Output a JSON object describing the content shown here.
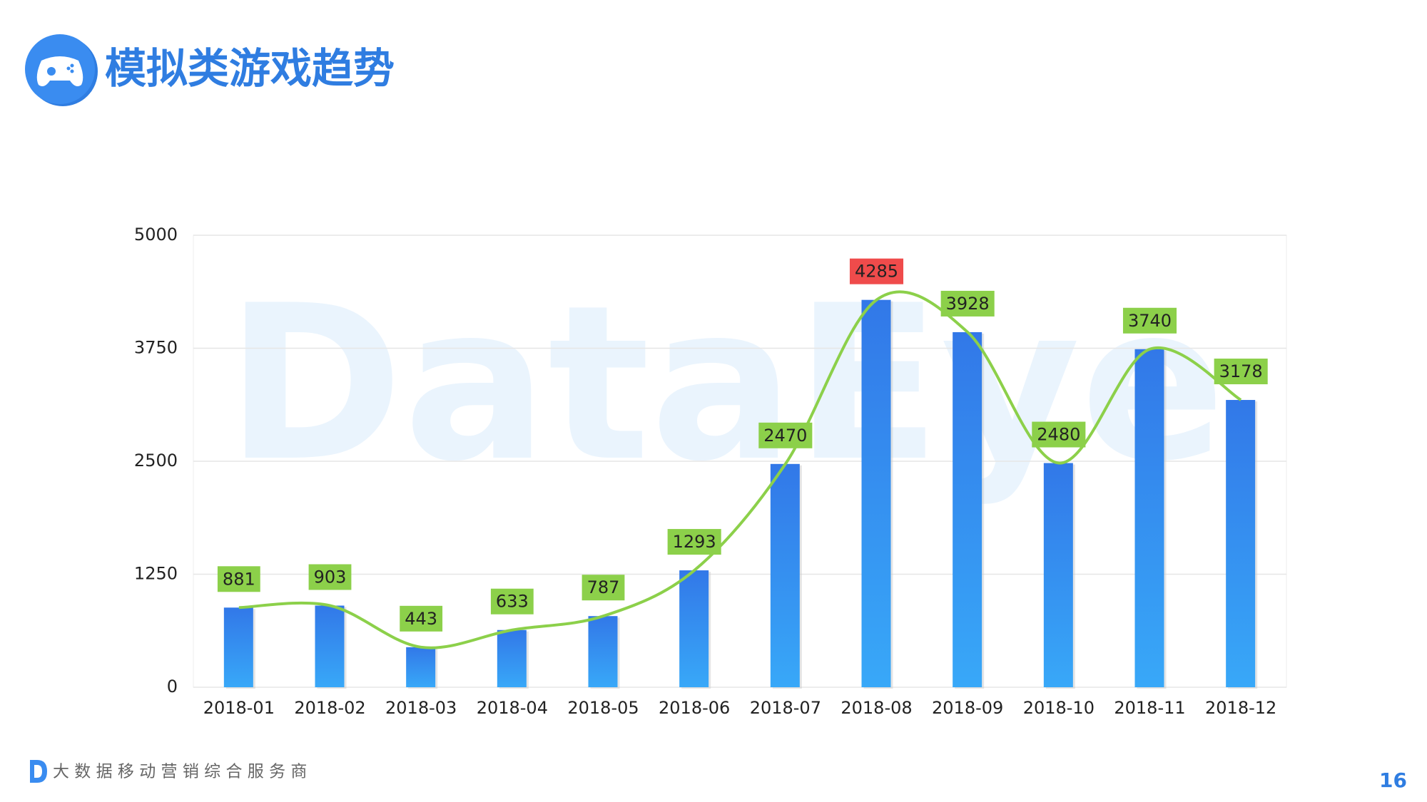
{
  "header": {
    "title": "模拟类游戏趋势"
  },
  "chart_data": {
    "type": "bar",
    "watermark": "DataEye",
    "categories": [
      "2018-01",
      "2018-02",
      "2018-03",
      "2018-04",
      "2018-05",
      "2018-06",
      "2018-07",
      "2018-08",
      "2018-09",
      "2018-10",
      "2018-11",
      "2018-12"
    ],
    "values": [
      881,
      903,
      443,
      633,
      787,
      1293,
      2470,
      4285,
      3928,
      2480,
      3740,
      3178
    ],
    "color": "#3278e8",
    "color_bottom": "#38a8f8",
    "line_color": "#8cd04a",
    "label_color": "#8cd04a",
    "highlight_color": "#ef4b4b",
    "ylim": [
      0,
      5000
    ],
    "yticks": [
      0,
      1250,
      2500,
      3750,
      5000
    ],
    "grid": true
  },
  "footer": {
    "slogan": "大 数 据 移 动 营 销 综 合 服 务 商",
    "page": "16"
  }
}
